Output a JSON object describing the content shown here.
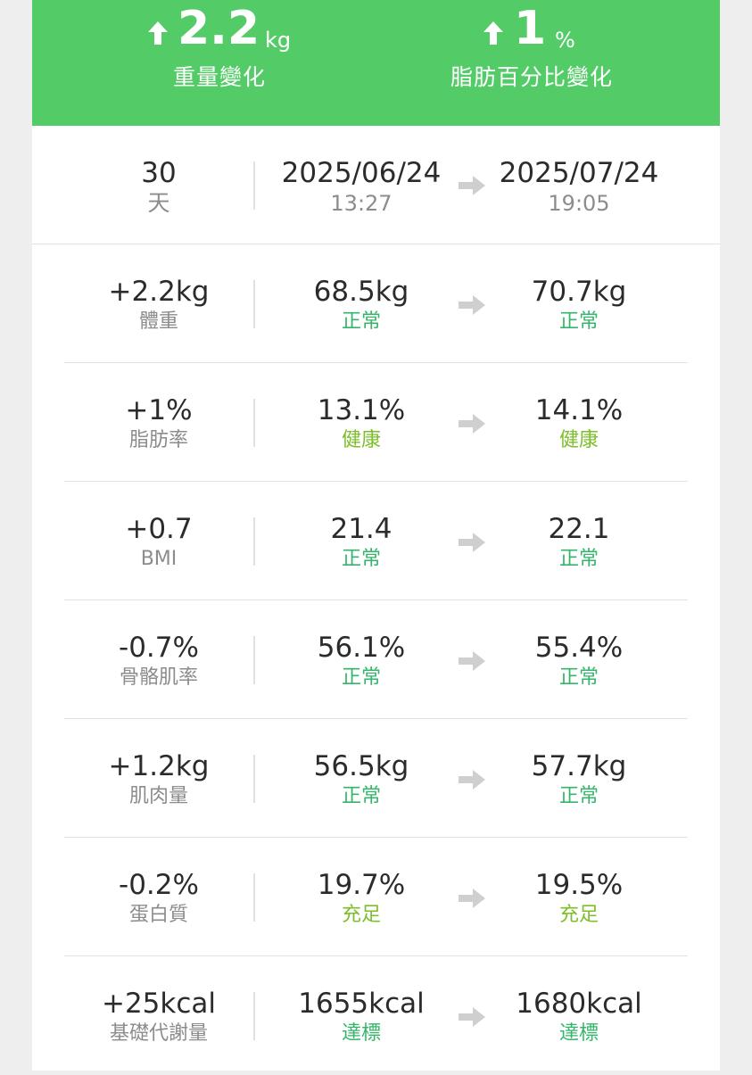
{
  "colors": {
    "header_bg": "#53cc68",
    "status_normal": "#35b56a",
    "status_healthy": "#7cbf2a",
    "label_gray": "#8c8c8c"
  },
  "header": {
    "weight": {
      "arrow_icon": "up-arrow-icon",
      "value": "2.2",
      "unit": "kg",
      "label": "重量變化"
    },
    "fat": {
      "arrow_icon": "up-arrow-icon",
      "value": "1",
      "unit": "%",
      "label": "脂肪百分比變化"
    }
  },
  "period": {
    "days": "30",
    "days_unit": "天",
    "start_date": "2025/06/24",
    "start_time": "13:27",
    "end_date": "2025/07/24",
    "end_time": "19:05",
    "arrow_icon": "right-arrow-icon"
  },
  "metrics": [
    {
      "change": "+2.2kg",
      "name": "體重",
      "from": "68.5kg",
      "from_status": "正常",
      "to": "70.7kg",
      "to_status": "正常"
    },
    {
      "change": "+1%",
      "name": "脂肪率",
      "from": "13.1%",
      "from_status": "健康",
      "to": "14.1%",
      "to_status": "健康"
    },
    {
      "change": "+0.7",
      "name": "BMI",
      "from": "21.4",
      "from_status": "正常",
      "to": "22.1",
      "to_status": "正常"
    },
    {
      "change": "-0.7%",
      "name": "骨骼肌率",
      "from": "56.1%",
      "from_status": "正常",
      "to": "55.4%",
      "to_status": "正常"
    },
    {
      "change": "+1.2kg",
      "name": "肌肉量",
      "from": "56.5kg",
      "from_status": "正常",
      "to": "57.7kg",
      "to_status": "正常"
    },
    {
      "change": "-0.2%",
      "name": "蛋白質",
      "from": "19.7%",
      "from_status": "充足",
      "to": "19.5%",
      "to_status": "充足"
    },
    {
      "change": "+25kcal",
      "name": "基礎代謝量",
      "from": "1655kcal",
      "from_status": "達標",
      "to": "1680kcal",
      "to_status": "達標"
    }
  ]
}
